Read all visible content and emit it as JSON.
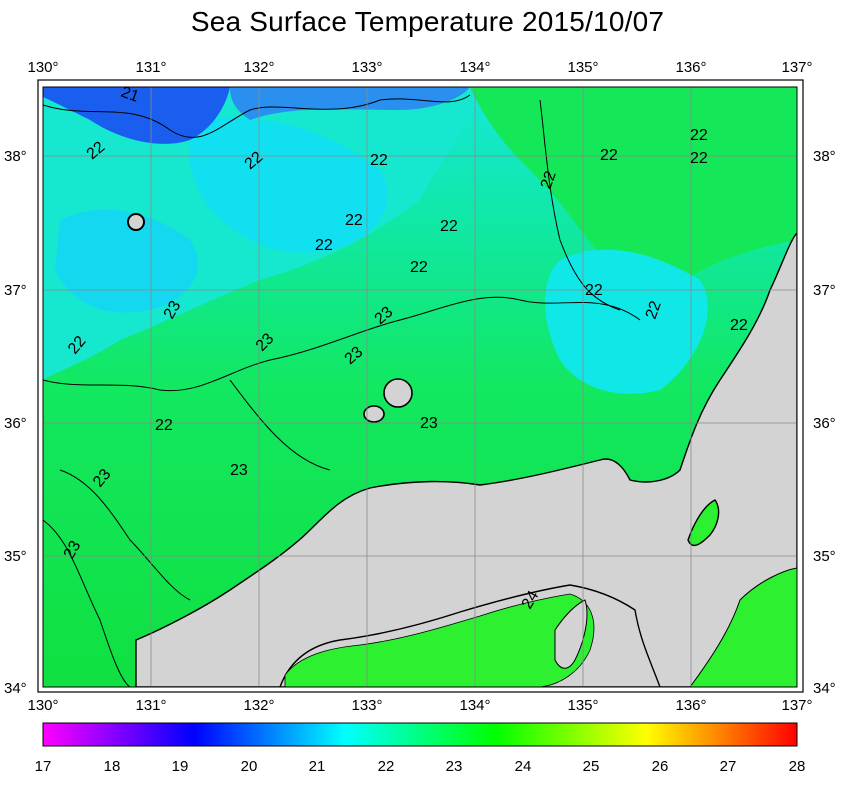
{
  "title": "Sea Surface Temperature 2015/10/07",
  "map": {
    "lon_ticks": [
      "130°",
      "131°",
      "132°",
      "133°",
      "134°",
      "135°",
      "136°",
      "137°"
    ],
    "lat_ticks": [
      "38°",
      "37°",
      "36°",
      "35°",
      "34°"
    ],
    "lon_range": [
      130,
      137
    ],
    "lat_range": [
      34,
      38.5
    ],
    "contour_labels": [
      "21",
      "22",
      "22",
      "22",
      "22",
      "22",
      "22",
      "22",
      "22",
      "22",
      "22",
      "22",
      "22",
      "22",
      "22",
      "22",
      "22",
      "23",
      "23",
      "23",
      "23",
      "23",
      "23",
      "23",
      "23",
      "24"
    ],
    "colors": {
      "land": "#d3d3d3",
      "cold": "#1a4ff0",
      "mid": "#00f0e0",
      "warm": "#10e040"
    }
  },
  "colorbar": {
    "labels": [
      "17",
      "18",
      "19",
      "20",
      "21",
      "22",
      "23",
      "24",
      "25",
      "26",
      "27",
      "28"
    ],
    "stops": [
      "#ff00ff",
      "#8000ff",
      "#0000ff",
      "#0080ff",
      "#00ffff",
      "#00ff80",
      "#00ff00",
      "#80ff00",
      "#ffff00",
      "#ff8000",
      "#ff0000"
    ]
  }
}
